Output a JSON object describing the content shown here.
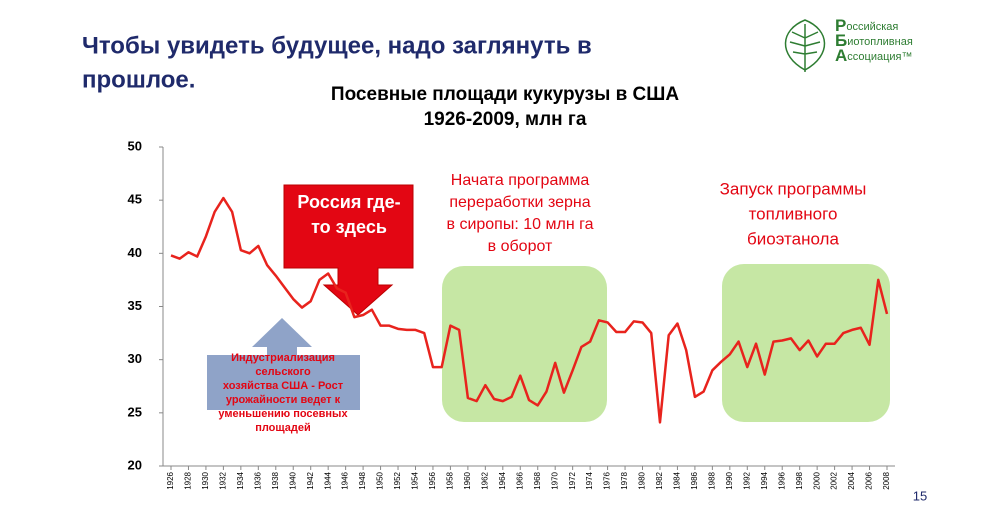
{
  "slide": {
    "heading": [
      "Чтобы увидеть будущее, надо заглянуть в",
      "прошлое."
    ],
    "logo": [
      {
        "initial": "Р",
        "rest": "оссийская"
      },
      {
        "initial": "Б",
        "rest": "иотопливная"
      },
      {
        "initial": "А",
        "rest": "ссоциация™"
      }
    ],
    "page_number": "15"
  },
  "chart_data": {
    "type": "line",
    "title": [
      "Посевные площади кукурузы в США",
      "1926-2009, млн га"
    ],
    "x": [
      1926,
      1927,
      1928,
      1929,
      1930,
      1931,
      1932,
      1933,
      1934,
      1935,
      1936,
      1937,
      1938,
      1939,
      1940,
      1941,
      1942,
      1943,
      1944,
      1945,
      1946,
      1947,
      1948,
      1949,
      1950,
      1951,
      1952,
      1953,
      1954,
      1955,
      1956,
      1957,
      1958,
      1959,
      1960,
      1961,
      1962,
      1963,
      1964,
      1965,
      1966,
      1967,
      1968,
      1969,
      1970,
      1971,
      1972,
      1973,
      1974,
      1975,
      1976,
      1977,
      1978,
      1979,
      1980,
      1981,
      1982,
      1983,
      1984,
      1985,
      1986,
      1987,
      1988,
      1989,
      1990,
      1991,
      1992,
      1993,
      1994,
      1995,
      1996,
      1997,
      1998,
      1999,
      2000,
      2001,
      2002,
      2003,
      2004,
      2005,
      2006,
      2007,
      2008
    ],
    "series": [
      {
        "name": "Посевные площади кукурузы",
        "color": "#e8231d",
        "values": [
          39.8,
          39.5,
          40.1,
          39.7,
          41.6,
          43.9,
          45.2,
          43.9,
          40.3,
          40.0,
          40.7,
          38.9,
          37.9,
          36.8,
          35.7,
          34.9,
          35.5,
          37.5,
          38.1,
          36.7,
          36.3,
          34.0,
          34.2,
          34.7,
          33.2,
          33.2,
          32.9,
          32.8,
          32.8,
          32.5,
          29.3,
          29.3,
          33.2,
          32.8,
          26.4,
          26.1,
          27.6,
          26.3,
          26.1,
          26.5,
          28.5,
          26.2,
          25.7,
          27.0,
          29.7,
          26.9,
          29.0,
          31.2,
          31.7,
          33.7,
          33.5,
          32.6,
          32.6,
          33.6,
          33.5,
          32.5,
          24.1,
          32.3,
          33.4,
          30.9,
          26.5,
          27.0,
          29.0,
          29.8,
          30.5,
          31.7,
          29.3,
          31.5,
          28.6,
          31.7,
          31.8,
          32.0,
          30.9,
          31.8,
          30.3,
          31.5,
          31.5,
          32.5,
          32.8,
          33.0,
          31.4,
          37.5,
          34.3
        ]
      }
    ],
    "xlim": [
      1926,
      2008
    ],
    "xticks": [
      1926,
      1928,
      1930,
      1932,
      1934,
      1936,
      1938,
      1940,
      1942,
      1944,
      1946,
      1948,
      1950,
      1952,
      1954,
      1956,
      1958,
      1960,
      1962,
      1964,
      1966,
      1968,
      1970,
      1972,
      1974,
      1976,
      1978,
      1980,
      1982,
      1984,
      1986,
      1988,
      1990,
      1992,
      1994,
      1996,
      1998,
      2000,
      2002,
      2004,
      2006,
      2008
    ],
    "ylim": [
      20,
      50
    ],
    "yticks": [
      20,
      25,
      30,
      35,
      40,
      45,
      50
    ],
    "annotations": {
      "russia": [
        "Россия где-",
        "то здесь"
      ],
      "industrial": [
        "Индустриализация",
        "сельского",
        "хозяйства США - Рост",
        "урожайности ведет к",
        "уменьшению посевных",
        "площадей"
      ],
      "syrup": [
        "Начата программа",
        "переработки зерна",
        "в сиропы: 10 млн га",
        "в оборот"
      ],
      "ethanol": [
        "Запуск программы",
        "топливного",
        "биоэтанола"
      ]
    }
  }
}
